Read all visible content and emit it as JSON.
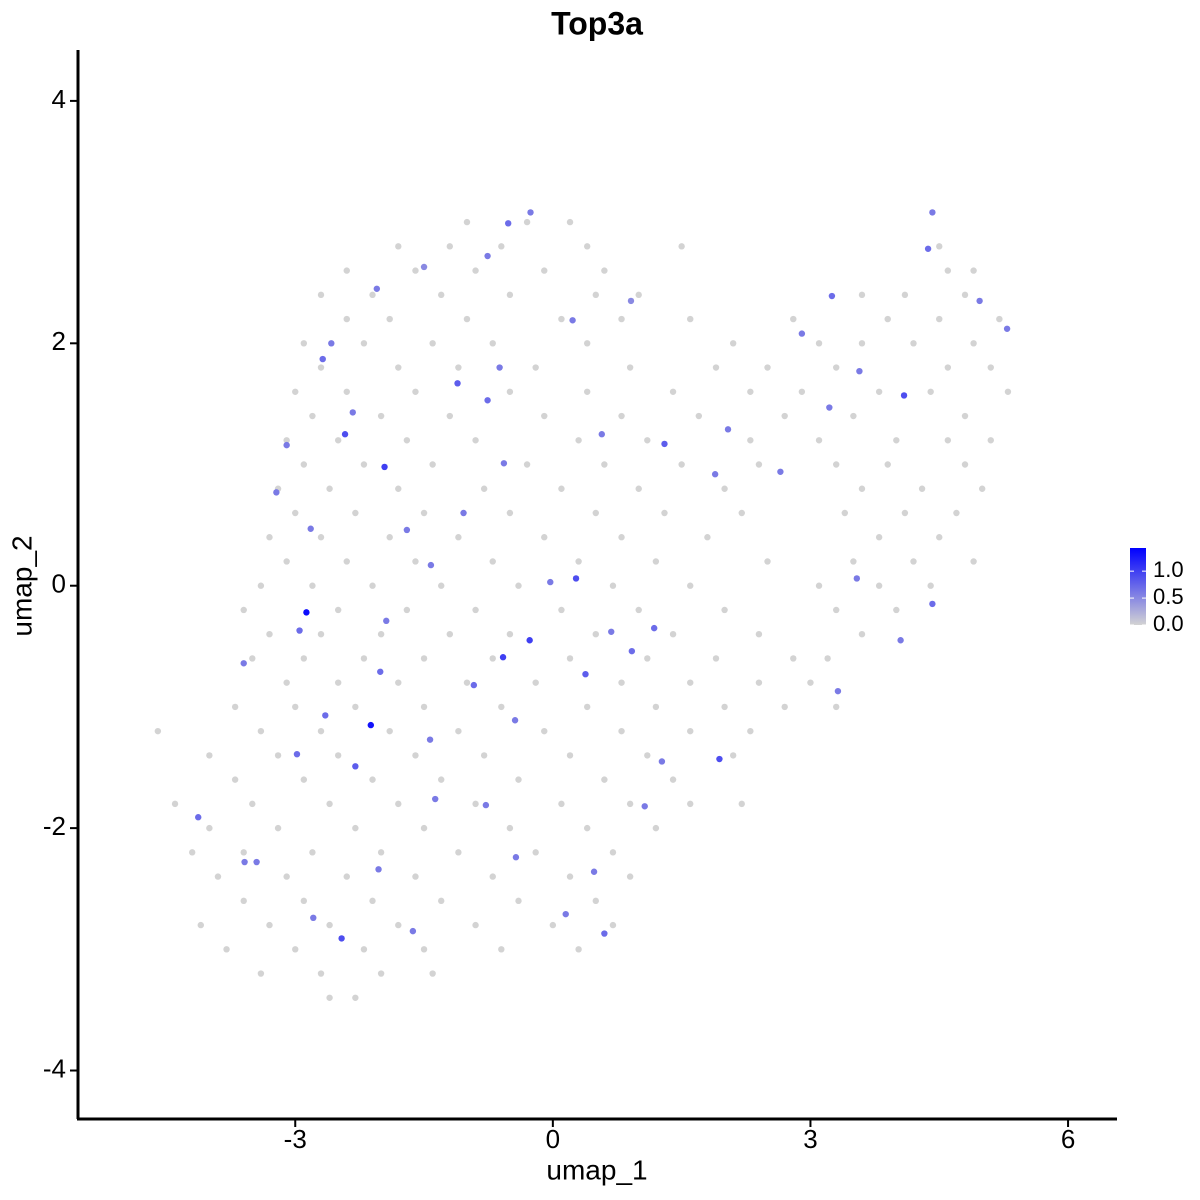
{
  "chart_data": {
    "type": "scatter",
    "title": "Top3a",
    "x_label": "umap_1",
    "y_label": "umap_2",
    "xlim": [
      -5.53,
      6.57
    ],
    "ylim": [
      -4.4,
      4.42
    ],
    "xticks": [
      -3,
      0,
      3,
      6
    ],
    "yticks": [
      -4,
      -2,
      0,
      2,
      4
    ],
    "color_low": "#d3d3d3",
    "color_high": "#0000ff",
    "color_lim": [
      0,
      1.43
    ],
    "color_ticks": [
      {
        "value": 0,
        "label": "0.0"
      },
      {
        "value": 0.5,
        "label": "0.5"
      },
      {
        "value": 1,
        "label": "1.0"
      }
    ],
    "x": [
      -1.0,
      -0.3,
      0.2,
      -1.8,
      -1.2,
      -0.6,
      0.4,
      1.5,
      4.5,
      -2.4,
      -1.6,
      -0.9,
      -0.1,
      0.6,
      4.6,
      4.9,
      -2.7,
      -2.1,
      -1.3,
      -0.5,
      0.5,
      1.0,
      3.6,
      4.1,
      4.8,
      -2.4,
      -1.9,
      -1.0,
      0.1,
      0.8,
      1.6,
      2.8,
      3.9,
      4.5,
      5.2,
      -2.9,
      -2.2,
      -1.4,
      -0.7,
      0.4,
      2.1,
      3.1,
      3.6,
      4.2,
      4.9,
      -2.7,
      -1.8,
      -1.1,
      -0.2,
      0.9,
      1.9,
      2.5,
      3.3,
      4.6,
      5.1,
      -3.0,
      -2.4,
      -1.6,
      -0.5,
      0.4,
      1.4,
      2.3,
      2.9,
      3.8,
      4.4,
      5.3,
      -2.8,
      -2.0,
      -1.2,
      -0.1,
      0.8,
      1.7,
      2.7,
      3.5,
      4.8,
      -3.1,
      -2.5,
      -1.7,
      -0.9,
      0.3,
      1.1,
      2.3,
      3.1,
      4.0,
      4.6,
      5.1,
      -2.9,
      -2.2,
      -1.4,
      -0.3,
      0.6,
      1.5,
      2.4,
      3.3,
      3.9,
      4.8,
      -3.2,
      -2.6,
      -1.8,
      -0.8,
      0.1,
      1.0,
      2.0,
      3.6,
      4.3,
      5.0,
      -3.0,
      -2.3,
      -1.5,
      -0.5,
      0.5,
      1.3,
      2.2,
      3.4,
      4.1,
      4.7,
      -3.3,
      -2.7,
      -1.9,
      -1.1,
      -0.1,
      0.8,
      1.8,
      3.8,
      4.5,
      -3.1,
      -2.4,
      -1.6,
      -0.7,
      0.3,
      1.2,
      2.5,
      3.5,
      4.2,
      4.9,
      -3.4,
      -2.8,
      -2.1,
      -1.3,
      -0.4,
      0.7,
      1.6,
      3.1,
      3.8,
      4.4,
      -3.6,
      -2.5,
      -1.7,
      -0.9,
      0.1,
      1.0,
      2.0,
      3.3,
      4.0,
      -3.3,
      -2.7,
      -2.0,
      -1.2,
      -0.5,
      0.5,
      1.4,
      2.4,
      3.6,
      -3.5,
      -2.9,
      -2.2,
      -1.5,
      -0.7,
      0.2,
      1.1,
      1.9,
      2.8,
      3.2,
      -3.1,
      -2.5,
      -1.8,
      -1.0,
      -0.2,
      0.8,
      1.6,
      2.4,
      3.0,
      -3.7,
      -3.0,
      -2.3,
      -1.5,
      -0.6,
      0.4,
      1.2,
      2.0,
      2.7,
      3.3,
      -4.6,
      -3.4,
      -2.7,
      -1.9,
      -1.1,
      -0.1,
      0.8,
      1.6,
      2.3,
      -4.0,
      -3.2,
      -2.5,
      -1.6,
      -0.8,
      0.2,
      1.1,
      2.1,
      -3.7,
      -2.9,
      -2.1,
      -1.3,
      -0.4,
      0.6,
      1.4,
      -4.4,
      -3.5,
      -2.6,
      -1.8,
      -0.9,
      0.1,
      0.9,
      1.6,
      2.2,
      -4.0,
      -3.2,
      -2.3,
      -1.5,
      -0.5,
      0.4,
      1.2,
      -4.2,
      -3.6,
      -2.8,
      -2.0,
      -1.1,
      -0.2,
      0.7,
      -3.9,
      -3.1,
      -2.4,
      -1.6,
      -0.7,
      0.2,
      0.9,
      -3.6,
      -2.9,
      -2.1,
      -1.3,
      -0.4,
      0.5,
      -4.1,
      -3.3,
      -2.6,
      -1.8,
      -0.9,
      0.0,
      0.7,
      -3.8,
      -3.0,
      -2.2,
      -1.5,
      -0.6,
      0.3,
      -3.4,
      -2.7,
      -2.0,
      -1.4,
      -2.6,
      -2.3,
      -2.87,
      -2.12,
      -1.96,
      -2.42,
      -0.52,
      -0.26,
      4.42,
      4.37,
      4.09,
      1.94,
      1.3,
      -1.11,
      -0.76,
      -0.57,
      -0.27,
      -0.58,
      0.27,
      0.38,
      0.92,
      -2.46,
      0.6,
      0.15,
      -2.3,
      -2.95,
      -3.6,
      -4.13,
      -3.22,
      -2.68,
      -2.58,
      -2.05,
      -1.5,
      -0.76,
      0.23,
      0.91,
      2.9,
      3.25,
      4.97,
      5.29,
      3.54,
      4.42,
      4.05,
      3.32,
      1.18,
      -1.43,
      -0.92,
      -0.44,
      0.68,
      -2.98,
      -2.65,
      -3.45,
      -2.79,
      -1.63,
      0.48,
      -0.43,
      -1.42,
      -1.7,
      -2.01,
      -0.03,
      1.89,
      2.04,
      2.65,
      3.22,
      3.57,
      0.57,
      -0.62,
      -2.33,
      -3.1,
      -2.82,
      -1.04,
      -1.94,
      -1.37,
      -0.78,
      1.07,
      1.27,
      -2.03,
      -3.59
    ],
    "y": [
      3.0,
      3.0,
      3.0,
      2.8,
      2.8,
      2.8,
      2.8,
      2.8,
      2.8,
      2.6,
      2.6,
      2.6,
      2.6,
      2.6,
      2.6,
      2.6,
      2.4,
      2.4,
      2.4,
      2.4,
      2.4,
      2.4,
      2.4,
      2.4,
      2.4,
      2.2,
      2.2,
      2.2,
      2.2,
      2.2,
      2.2,
      2.2,
      2.2,
      2.2,
      2.2,
      2.0,
      2.0,
      2.0,
      2.0,
      2.0,
      2.0,
      2.0,
      2.0,
      2.0,
      2.0,
      1.8,
      1.8,
      1.8,
      1.8,
      1.8,
      1.8,
      1.8,
      1.8,
      1.8,
      1.8,
      1.6,
      1.6,
      1.6,
      1.6,
      1.6,
      1.6,
      1.6,
      1.6,
      1.6,
      1.6,
      1.6,
      1.4,
      1.4,
      1.4,
      1.4,
      1.4,
      1.4,
      1.4,
      1.4,
      1.4,
      1.2,
      1.2,
      1.2,
      1.2,
      1.2,
      1.2,
      1.2,
      1.2,
      1.2,
      1.2,
      1.2,
      1.0,
      1.0,
      1.0,
      1.0,
      1.0,
      1.0,
      1.0,
      1.0,
      1.0,
      1.0,
      0.8,
      0.8,
      0.8,
      0.8,
      0.8,
      0.8,
      0.8,
      0.8,
      0.8,
      0.8,
      0.6,
      0.6,
      0.6,
      0.6,
      0.6,
      0.6,
      0.6,
      0.6,
      0.6,
      0.6,
      0.4,
      0.4,
      0.4,
      0.4,
      0.4,
      0.4,
      0.4,
      0.4,
      0.4,
      0.2,
      0.2,
      0.2,
      0.2,
      0.2,
      0.2,
      0.2,
      0.2,
      0.2,
      0.2,
      0.0,
      0.0,
      0.0,
      0.0,
      0.0,
      0.0,
      0.0,
      0.0,
      0.0,
      0.0,
      -0.2,
      -0.2,
      -0.2,
      -0.2,
      -0.2,
      -0.2,
      -0.2,
      -0.2,
      -0.2,
      -0.4,
      -0.4,
      -0.4,
      -0.4,
      -0.4,
      -0.4,
      -0.4,
      -0.4,
      -0.4,
      -0.6,
      -0.6,
      -0.6,
      -0.6,
      -0.6,
      -0.6,
      -0.6,
      -0.6,
      -0.6,
      -0.6,
      -0.8,
      -0.8,
      -0.8,
      -0.8,
      -0.8,
      -0.8,
      -0.8,
      -0.8,
      -0.8,
      -1.0,
      -1.0,
      -1.0,
      -1.0,
      -1.0,
      -1.0,
      -1.0,
      -1.0,
      -1.0,
      -1.0,
      -1.2,
      -1.2,
      -1.2,
      -1.2,
      -1.2,
      -1.2,
      -1.2,
      -1.2,
      -1.2,
      -1.4,
      -1.4,
      -1.4,
      -1.4,
      -1.4,
      -1.4,
      -1.4,
      -1.4,
      -1.6,
      -1.6,
      -1.6,
      -1.6,
      -1.6,
      -1.6,
      -1.6,
      -1.8,
      -1.8,
      -1.8,
      -1.8,
      -1.8,
      -1.8,
      -1.8,
      -1.8,
      -1.8,
      -2.0,
      -2.0,
      -2.0,
      -2.0,
      -2.0,
      -2.0,
      -2.0,
      -2.2,
      -2.2,
      -2.2,
      -2.2,
      -2.2,
      -2.2,
      -2.2,
      -2.4,
      -2.4,
      -2.4,
      -2.4,
      -2.4,
      -2.4,
      -2.4,
      -2.6,
      -2.6,
      -2.6,
      -2.6,
      -2.6,
      -2.6,
      -2.8,
      -2.8,
      -2.8,
      -2.8,
      -2.8,
      -2.8,
      -2.8,
      -3.0,
      -3.0,
      -3.0,
      -3.0,
      -3.0,
      -3.0,
      -3.2,
      -3.2,
      -3.2,
      -3.2,
      -3.4,
      -3.4,
      -0.22,
      -1.15,
      0.98,
      1.25,
      2.99,
      3.08,
      3.08,
      2.78,
      1.57,
      -1.43,
      1.17,
      1.67,
      1.53,
      1.01,
      -0.45,
      -0.59,
      0.06,
      -0.73,
      -0.54,
      -2.91,
      -2.87,
      -2.71,
      -1.49,
      -0.37,
      -0.64,
      -1.91,
      0.77,
      1.87,
      2.0,
      2.45,
      2.63,
      2.72,
      2.19,
      2.35,
      2.08,
      2.39,
      2.35,
      2.12,
      0.06,
      -0.15,
      -0.45,
      -0.87,
      -0.35,
      -1.27,
      -0.82,
      -1.11,
      -0.38,
      -1.39,
      -1.07,
      -2.28,
      -2.74,
      -2.85,
      -2.36,
      -2.24,
      0.17,
      0.46,
      -0.71,
      0.03,
      0.92,
      1.29,
      0.94,
      1.47,
      1.77,
      1.25,
      1.8,
      1.43,
      1.16,
      0.47,
      0.6,
      -0.29,
      -1.76,
      -1.81,
      -1.82,
      -1.45,
      -2.34,
      -2.28
    ],
    "expression": [
      0,
      0,
      0,
      0,
      0,
      0,
      0,
      0,
      0,
      0,
      0,
      0,
      0,
      0,
      0,
      0,
      0,
      0,
      0,
      0,
      0,
      0,
      0,
      0,
      0,
      0,
      0,
      0,
      0,
      0,
      0,
      0,
      0,
      0,
      0,
      0,
      0,
      0,
      0,
      0,
      0,
      0,
      0,
      0,
      0,
      0,
      0,
      0,
      0,
      0,
      0,
      0,
      0,
      0,
      0,
      0,
      0,
      0,
      0,
      0,
      0,
      0,
      0,
      0,
      0,
      0,
      0,
      0,
      0,
      0,
      0,
      0,
      0,
      0,
      0,
      0,
      0,
      0,
      0,
      0,
      0,
      0,
      0,
      0,
      0,
      0,
      0,
      0,
      0,
      0,
      0,
      0,
      0,
      0,
      0,
      0,
      0,
      0,
      0,
      0,
      0,
      0,
      0,
      0,
      0,
      0,
      0,
      0,
      0,
      0,
      0,
      0,
      0,
      0,
      0,
      0,
      0,
      0,
      0,
      0,
      0,
      0,
      0,
      0,
      0,
      0,
      0,
      0,
      0,
      0,
      0,
      0,
      0,
      0,
      0,
      0,
      0,
      0,
      0,
      0,
      0,
      0,
      0,
      0,
      0,
      0,
      0,
      0,
      0,
      0,
      0,
      0,
      0,
      0,
      0,
      0,
      0,
      0,
      0,
      0,
      0,
      0,
      0,
      0,
      0,
      0,
      0,
      0,
      0,
      0,
      0,
      0,
      0,
      0,
      0,
      0,
      0,
      0,
      0,
      0,
      0,
      0,
      0,
      0,
      0,
      0,
      0,
      0,
      0,
      0,
      0,
      0,
      0,
      0,
      0,
      0,
      0,
      0,
      0,
      0,
      0,
      0,
      0,
      0,
      0,
      0,
      0,
      0,
      0,
      0,
      0,
      0,
      0,
      0,
      0,
      0,
      0,
      0,
      0,
      0,
      0,
      0,
      0,
      0,
      0,
      0,
      0,
      0,
      0,
      0,
      0,
      0,
      0,
      0,
      0,
      0,
      0,
      0,
      0,
      0,
      0,
      0,
      0,
      0,
      0,
      0,
      0,
      0,
      0,
      0,
      0,
      0,
      0,
      0,
      0,
      0,
      0,
      0,
      0,
      0,
      0,
      0,
      0,
      0,
      0,
      0,
      0,
      0,
      0,
      0,
      0,
      1.35,
      1.3,
      1.0,
      0.9,
      0.7,
      0.6,
      0.6,
      0.7,
      0.9,
      0.9,
      0.8,
      0.8,
      0.7,
      0.6,
      1.0,
      1.0,
      0.9,
      0.8,
      0.7,
      0.9,
      0.7,
      0.6,
      0.8,
      0.7,
      0.6,
      0.7,
      0.6,
      0.7,
      0.6,
      0.6,
      0.5,
      0.6,
      0.6,
      0.5,
      0.6,
      0.7,
      0.6,
      0.6,
      0.6,
      0.7,
      0.6,
      0.6,
      0.7,
      0.6,
      0.7,
      0.6,
      0.6,
      0.7,
      0.7,
      0.6,
      0.6,
      0.6,
      0.6,
      0.6,
      0.6,
      0.6,
      0.7,
      0.6,
      0.6,
      0.6,
      0.6,
      0.6,
      0.6,
      0.6,
      0.6,
      0.6,
      0.6,
      0.6,
      0.6,
      0.6,
      0.6,
      0.6,
      0.6,
      0.6,
      0.6,
      0.6
    ]
  }
}
